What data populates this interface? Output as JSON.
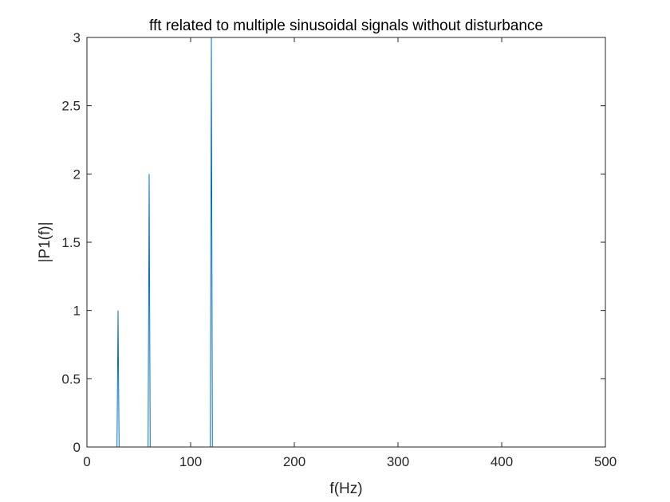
{
  "chart_data": {
    "type": "line",
    "title": "fft related to multiple sinusoidal signals without disturbance",
    "xlabel": "f(Hz)",
    "ylabel": "|P1(f)|",
    "xlim": [
      0,
      500
    ],
    "ylim": [
      0,
      3
    ],
    "xticks": [
      "0",
      "100",
      "200",
      "300",
      "400",
      "500"
    ],
    "yticks": [
      "0",
      "0.5",
      "1",
      "1.5",
      "2",
      "2.5",
      "3"
    ],
    "grid": false,
    "series": [
      {
        "color": "#0072BD",
        "x": [
          0,
          29,
          30,
          31,
          59,
          60,
          61,
          119,
          120,
          121,
          500
        ],
        "y": [
          0,
          0,
          1,
          0,
          0,
          2,
          0,
          0,
          3,
          0,
          0
        ]
      }
    ]
  }
}
